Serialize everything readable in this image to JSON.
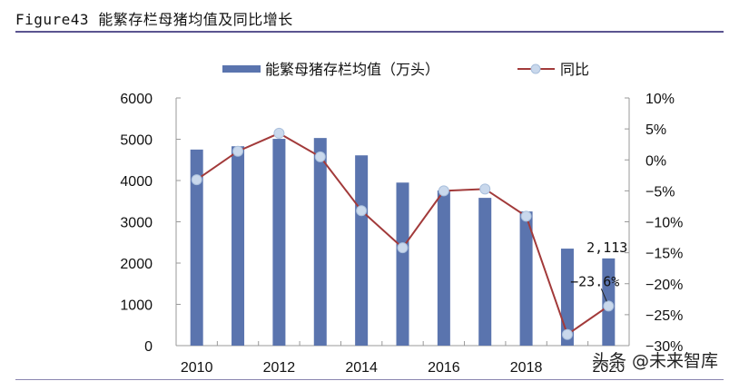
{
  "figure": {
    "title": "Figure43 能繁存栏母猪均值及同比增长",
    "watermark": "头条 @未来智库"
  },
  "chart_data": {
    "type": "bar+line",
    "title": "Figure43 能繁存栏母猪均值及同比增长",
    "categories": [
      "2010",
      "2011",
      "2012",
      "2013",
      "2014",
      "2015",
      "2016",
      "2017",
      "2018",
      "2019",
      "2020"
    ],
    "x_tick_labels": [
      "2010",
      "2012",
      "2014",
      "2016",
      "2018",
      "2020"
    ],
    "series": [
      {
        "name": "能繁母猪存栏均值（万头）",
        "type": "bar",
        "axis": "left",
        "color": "#5a74ae",
        "values": [
          4750,
          4830,
          5010,
          5030,
          4610,
          3950,
          3760,
          3580,
          3250,
          2350,
          2113
        ]
      },
      {
        "name": "同比",
        "type": "line",
        "axis": "right",
        "color": "#a23a3a",
        "marker_color": "#c9d8ec",
        "unit": "%",
        "values": [
          -3.2,
          1.4,
          4.3,
          0.5,
          -8.2,
          -14.2,
          -5.0,
          -4.7,
          -9.1,
          -28.2,
          -23.6
        ]
      }
    ],
    "annotations": [
      {
        "text": "2,113",
        "target": "bar 2020"
      },
      {
        "text": "-23.6%",
        "target": "line 2020"
      }
    ],
    "left_axis": {
      "min": 0,
      "max": 6000,
      "ticks": [
        "0",
        "1000",
        "2000",
        "3000",
        "4000",
        "5000",
        "6000"
      ]
    },
    "right_axis": {
      "min": -30,
      "max": 10,
      "ticks": [
        "10%",
        "5%",
        "0%",
        "-5%",
        "-10%",
        "-15%",
        "-20%",
        "-25%",
        "-30%"
      ]
    },
    "legend_position": "top",
    "grid": false
  }
}
